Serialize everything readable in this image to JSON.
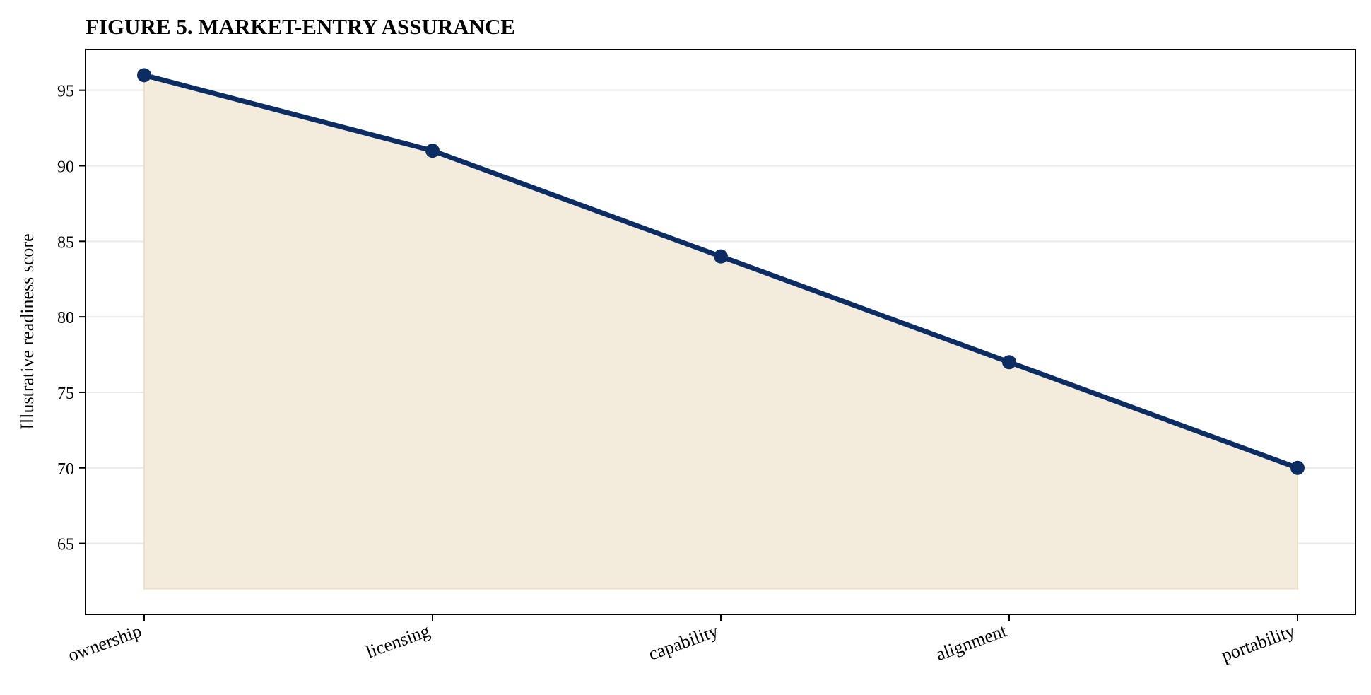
{
  "chart_data": {
    "type": "area",
    "title": "FIGURE 5. MARKET-ENTRY ASSURANCE",
    "xlabel": "",
    "ylabel": "Illustrative readiness score",
    "categories": [
      "ownership",
      "licensing",
      "capability",
      "alignment",
      "portability"
    ],
    "series": [
      {
        "values": [
          96,
          91,
          84,
          77,
          70
        ]
      }
    ],
    "fill_baseline": 62,
    "ylim": [
      60.3,
      97.7
    ],
    "yticks": [
      65,
      70,
      75,
      80,
      85,
      90,
      95
    ],
    "grid": "horizontal",
    "line_color": "#0b2d64",
    "fill_color": "#f3ebdc",
    "fill_edge_color": "#ede1c4"
  }
}
